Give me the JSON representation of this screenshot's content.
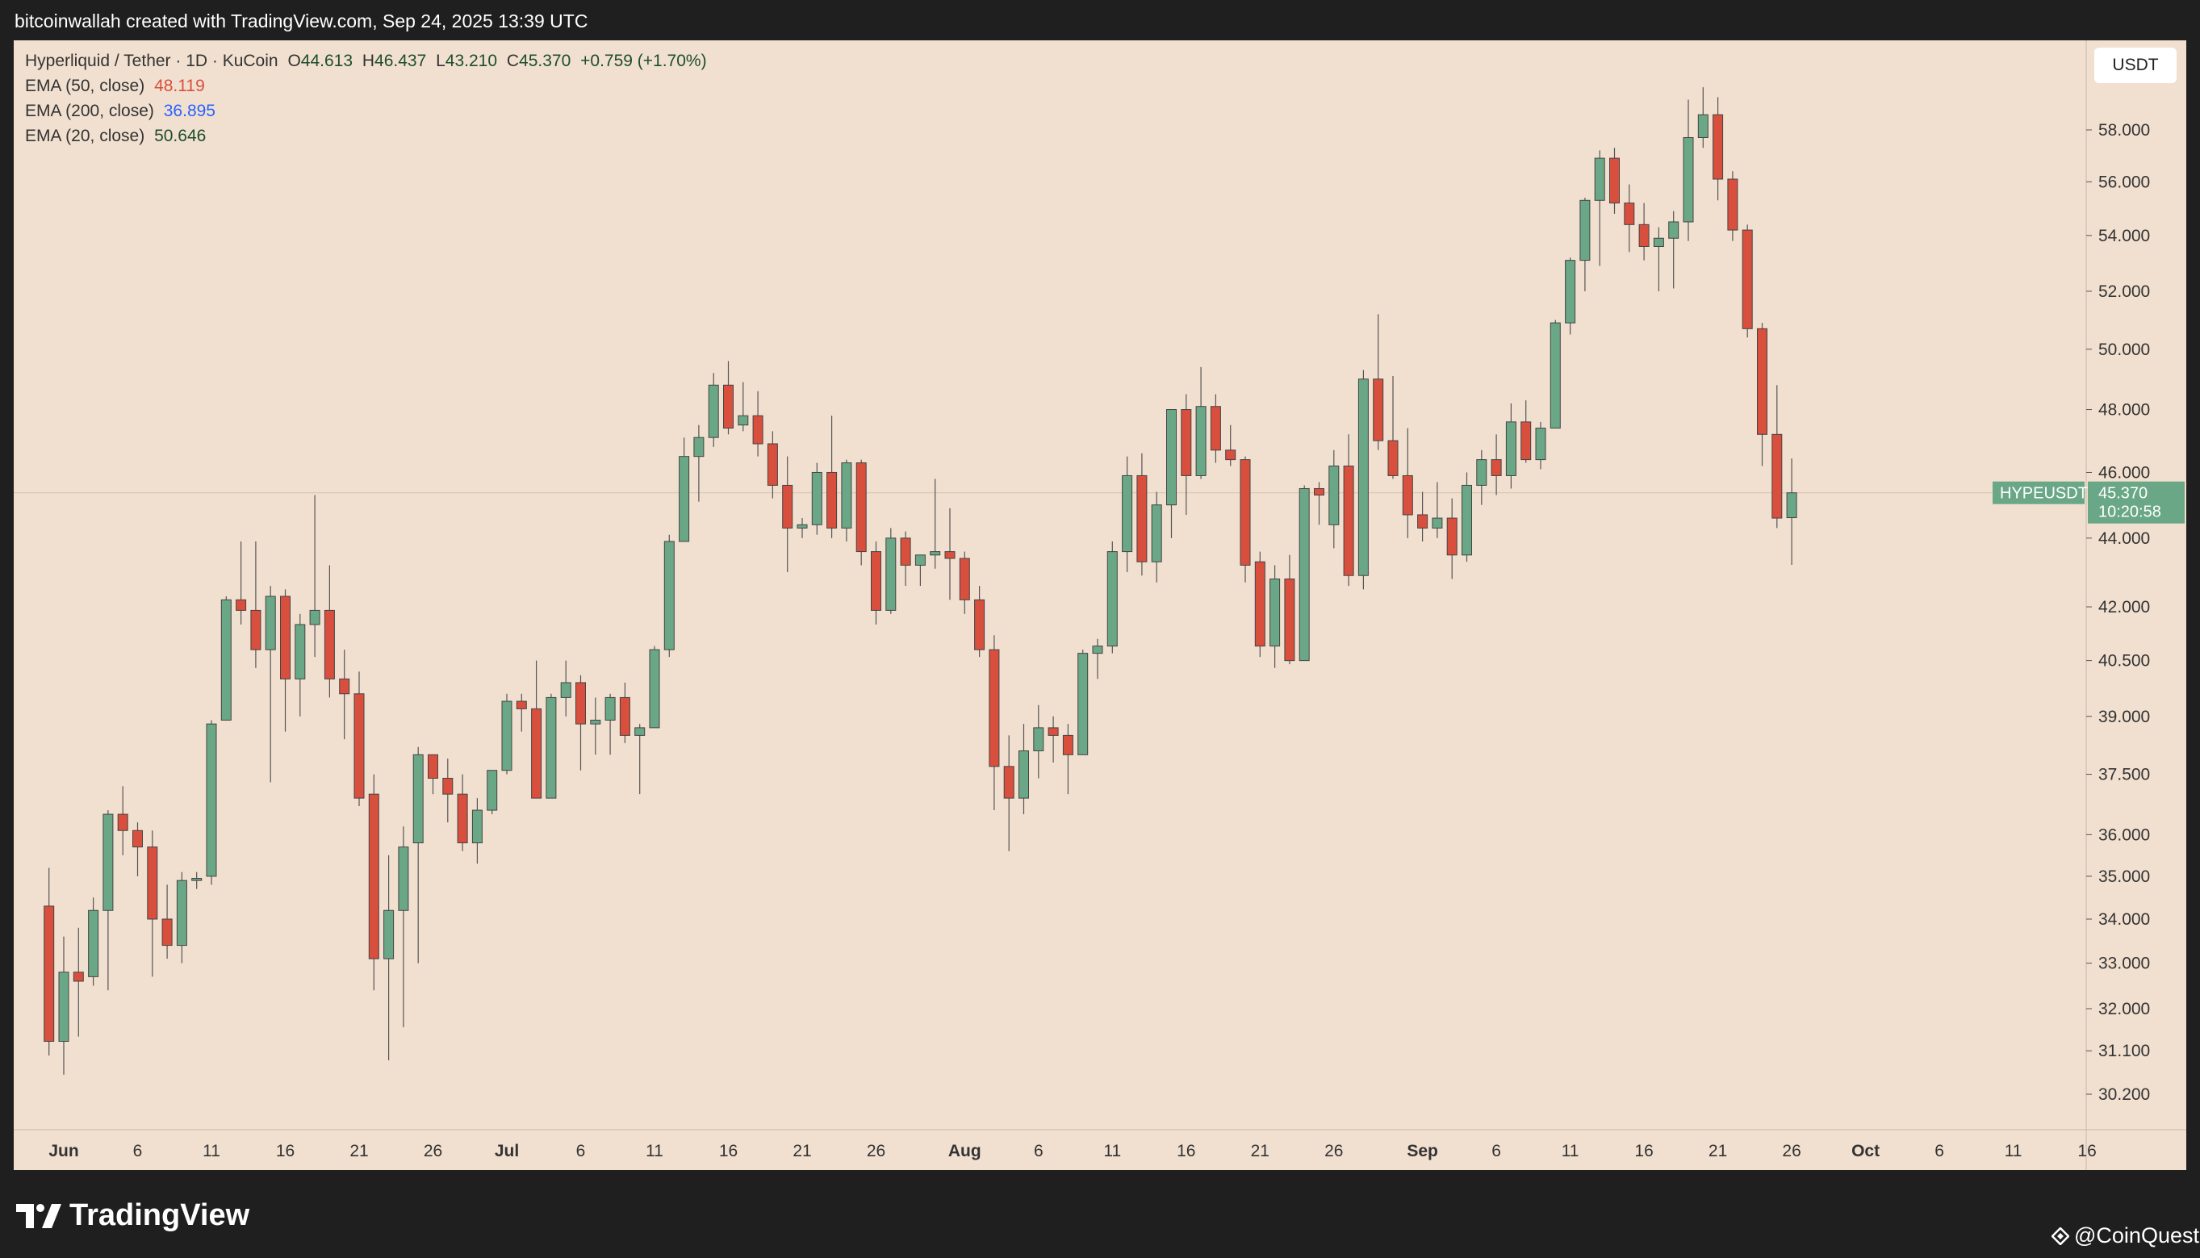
{
  "header": {
    "credit": "bitcoinwallah created with TradingView.com, Sep 24, 2025 13:39 UTC"
  },
  "legend": {
    "symbol_line": {
      "name": "Hyperliquid / Tether · 1D · KuCoin",
      "open_label": "O",
      "open": "44.613",
      "high_label": "H",
      "high": "46.437",
      "low_label": "L",
      "low": "43.210",
      "close_label": "C",
      "close": "45.370",
      "change": "+0.759 (+1.70%)"
    },
    "ema": [
      {
        "label": "EMA (50, close)",
        "value": "48.119",
        "color": "#d94f3d"
      },
      {
        "label": "EMA (200, close)",
        "value": "36.895",
        "color": "#2962ff"
      },
      {
        "label": "EMA (20, close)",
        "value": "50.646",
        "color": "#1e4d2b"
      }
    ]
  },
  "currency_button": "USDT",
  "price_tag": {
    "symbol": "HYPEUSDT",
    "price": "45.370",
    "countdown": "10:20:58",
    "color": "#6aa786"
  },
  "brand": {
    "name": "TradingView"
  },
  "watermark": {
    "text": "@CoinQuest"
  },
  "chart_data": {
    "type": "candlestick",
    "symbol": "HYPEUSDT",
    "scale": "log",
    "y_ticks": [
      58.0,
      56.0,
      54.0,
      52.0,
      50.0,
      48.0,
      46.0,
      44.0,
      42.0,
      40.5,
      39.0,
      37.5,
      36.0,
      35.0,
      34.0,
      33.0,
      32.0,
      31.1,
      30.2
    ],
    "y_tick_labels": [
      "58.000",
      "56.000",
      "54.000",
      "52.000",
      "50.000",
      "48.000",
      "46.000",
      "44.000",
      "42.000",
      "40.500",
      "39.000",
      "37.500",
      "36.000",
      "35.000",
      "34.000",
      "33.000",
      "32.000",
      "31.100",
      "30.200"
    ],
    "x_tick_labels": [
      "Jun",
      "6",
      "11",
      "16",
      "21",
      "26",
      "Jul",
      "6",
      "11",
      "16",
      "21",
      "26",
      "Aug",
      "6",
      "11",
      "16",
      "21",
      "26",
      "Sep",
      "6",
      "11",
      "16",
      "21",
      "26",
      "Oct",
      "6",
      "11",
      "16"
    ],
    "x_tick_dates": [
      "2025-06-01",
      "2025-06-06",
      "2025-06-11",
      "2025-06-16",
      "2025-06-21",
      "2025-06-26",
      "2025-07-01",
      "2025-07-06",
      "2025-07-11",
      "2025-07-16",
      "2025-07-21",
      "2025-07-26",
      "2025-08-01",
      "2025-08-06",
      "2025-08-11",
      "2025-08-16",
      "2025-08-21",
      "2025-08-26",
      "2025-09-01",
      "2025-09-06",
      "2025-09-11",
      "2025-09-16",
      "2025-09-21",
      "2025-09-26",
      "2025-10-01",
      "2025-10-06",
      "2025-10-11",
      "2025-10-16"
    ],
    "last_price": 45.37,
    "up_color": "#6aa786",
    "down_color": "#d94f3d",
    "candles": [
      {
        "date": "2025-05-31",
        "o": 34.3,
        "h": 35.2,
        "l": 31.0,
        "c": 31.3
      },
      {
        "date": "2025-06-01",
        "o": 31.3,
        "h": 33.6,
        "l": 30.6,
        "c": 32.8
      },
      {
        "date": "2025-06-02",
        "o": 32.8,
        "h": 33.8,
        "l": 31.4,
        "c": 32.6
      },
      {
        "date": "2025-06-03",
        "o": 32.7,
        "h": 34.5,
        "l": 32.5,
        "c": 34.2
      },
      {
        "date": "2025-06-04",
        "o": 34.2,
        "h": 36.6,
        "l": 32.4,
        "c": 36.5
      },
      {
        "date": "2025-06-05",
        "o": 36.5,
        "h": 37.2,
        "l": 35.5,
        "c": 36.1
      },
      {
        "date": "2025-06-06",
        "o": 36.1,
        "h": 36.3,
        "l": 35.0,
        "c": 35.7
      },
      {
        "date": "2025-06-07",
        "o": 35.7,
        "h": 36.1,
        "l": 32.7,
        "c": 34.0
      },
      {
        "date": "2025-06-08",
        "o": 34.0,
        "h": 34.8,
        "l": 33.1,
        "c": 33.4
      },
      {
        "date": "2025-06-09",
        "o": 33.4,
        "h": 35.1,
        "l": 33.0,
        "c": 34.9
      },
      {
        "date": "2025-06-10",
        "o": 34.9,
        "h": 35.1,
        "l": 34.7,
        "c": 34.95
      },
      {
        "date": "2025-06-11",
        "o": 35.0,
        "h": 38.9,
        "l": 34.8,
        "c": 38.8
      },
      {
        "date": "2025-06-12",
        "o": 38.9,
        "h": 42.3,
        "l": 38.9,
        "c": 42.2
      },
      {
        "date": "2025-06-13",
        "o": 42.2,
        "h": 43.9,
        "l": 41.5,
        "c": 41.9
      },
      {
        "date": "2025-06-14",
        "o": 41.9,
        "h": 43.9,
        "l": 40.3,
        "c": 40.8
      },
      {
        "date": "2025-06-15",
        "o": 40.8,
        "h": 42.6,
        "l": 37.3,
        "c": 42.3
      },
      {
        "date": "2025-06-16",
        "o": 42.3,
        "h": 42.5,
        "l": 38.6,
        "c": 40.0
      },
      {
        "date": "2025-06-17",
        "o": 40.0,
        "h": 41.8,
        "l": 39.0,
        "c": 41.5
      },
      {
        "date": "2025-06-18",
        "o": 41.5,
        "h": 45.3,
        "l": 40.6,
        "c": 41.9
      },
      {
        "date": "2025-06-19",
        "o": 41.9,
        "h": 43.2,
        "l": 39.5,
        "c": 40.0
      },
      {
        "date": "2025-06-20",
        "o": 40.0,
        "h": 40.8,
        "l": 38.4,
        "c": 39.6
      },
      {
        "date": "2025-06-21",
        "o": 39.6,
        "h": 40.2,
        "l": 36.7,
        "c": 36.9
      },
      {
        "date": "2025-06-22",
        "o": 37.0,
        "h": 37.5,
        "l": 32.4,
        "c": 33.1
      },
      {
        "date": "2025-06-23",
        "o": 33.1,
        "h": 35.5,
        "l": 30.9,
        "c": 34.2
      },
      {
        "date": "2025-06-24",
        "o": 34.2,
        "h": 36.2,
        "l": 31.6,
        "c": 35.7
      },
      {
        "date": "2025-06-25",
        "o": 35.8,
        "h": 38.2,
        "l": 33.0,
        "c": 38.0
      },
      {
        "date": "2025-06-26",
        "o": 38.0,
        "h": 38.0,
        "l": 37.0,
        "c": 37.4
      },
      {
        "date": "2025-06-27",
        "o": 37.4,
        "h": 37.9,
        "l": 36.3,
        "c": 37.0
      },
      {
        "date": "2025-06-28",
        "o": 37.0,
        "h": 37.5,
        "l": 35.6,
        "c": 35.8
      },
      {
        "date": "2025-06-29",
        "o": 35.8,
        "h": 36.9,
        "l": 35.3,
        "c": 36.6
      },
      {
        "date": "2025-06-30",
        "o": 36.6,
        "h": 37.6,
        "l": 36.5,
        "c": 37.6
      },
      {
        "date": "2025-07-01",
        "o": 37.6,
        "h": 39.6,
        "l": 37.5,
        "c": 39.4
      },
      {
        "date": "2025-07-02",
        "o": 39.4,
        "h": 39.6,
        "l": 38.6,
        "c": 39.2
      },
      {
        "date": "2025-07-03",
        "o": 39.2,
        "h": 40.5,
        "l": 37.1,
        "c": 36.9
      },
      {
        "date": "2025-07-04",
        "o": 36.9,
        "h": 39.6,
        "l": 36.9,
        "c": 39.5
      },
      {
        "date": "2025-07-05",
        "o": 39.5,
        "h": 40.5,
        "l": 39.0,
        "c": 39.9
      },
      {
        "date": "2025-07-06",
        "o": 39.9,
        "h": 40.1,
        "l": 37.6,
        "c": 38.8
      },
      {
        "date": "2025-07-07",
        "o": 38.8,
        "h": 39.5,
        "l": 38.0,
        "c": 38.9
      },
      {
        "date": "2025-07-08",
        "o": 38.9,
        "h": 39.6,
        "l": 38.0,
        "c": 39.5
      },
      {
        "date": "2025-07-09",
        "o": 39.5,
        "h": 39.9,
        "l": 38.3,
        "c": 38.5
      },
      {
        "date": "2025-07-10",
        "o": 38.5,
        "h": 38.8,
        "l": 37.0,
        "c": 38.7
      },
      {
        "date": "2025-07-11",
        "o": 38.7,
        "h": 40.9,
        "l": 38.7,
        "c": 40.8
      },
      {
        "date": "2025-07-12",
        "o": 40.8,
        "h": 44.1,
        "l": 40.6,
        "c": 43.9
      },
      {
        "date": "2025-07-13",
        "o": 43.9,
        "h": 47.1,
        "l": 43.9,
        "c": 46.5
      },
      {
        "date": "2025-07-14",
        "o": 46.5,
        "h": 47.5,
        "l": 45.1,
        "c": 47.1
      },
      {
        "date": "2025-07-15",
        "o": 47.1,
        "h": 49.2,
        "l": 46.8,
        "c": 48.8
      },
      {
        "date": "2025-07-16",
        "o": 48.8,
        "h": 49.6,
        "l": 47.2,
        "c": 47.4
      },
      {
        "date": "2025-07-17",
        "o": 47.5,
        "h": 48.9,
        "l": 47.3,
        "c": 47.8
      },
      {
        "date": "2025-07-18",
        "o": 47.8,
        "h": 48.6,
        "l": 46.5,
        "c": 46.9
      },
      {
        "date": "2025-07-19",
        "o": 46.9,
        "h": 47.3,
        "l": 45.2,
        "c": 45.6
      },
      {
        "date": "2025-07-20",
        "o": 45.6,
        "h": 46.5,
        "l": 43.0,
        "c": 44.3
      },
      {
        "date": "2025-07-21",
        "o": 44.3,
        "h": 44.6,
        "l": 44.0,
        "c": 44.4
      },
      {
        "date": "2025-07-22",
        "o": 44.4,
        "h": 46.3,
        "l": 44.1,
        "c": 46.0
      },
      {
        "date": "2025-07-23",
        "o": 46.0,
        "h": 47.8,
        "l": 44.0,
        "c": 44.3
      },
      {
        "date": "2025-07-24",
        "o": 44.3,
        "h": 46.4,
        "l": 43.9,
        "c": 46.3
      },
      {
        "date": "2025-07-25",
        "o": 46.3,
        "h": 46.4,
        "l": 43.2,
        "c": 43.6
      },
      {
        "date": "2025-07-26",
        "o": 43.6,
        "h": 43.9,
        "l": 41.5,
        "c": 41.9
      },
      {
        "date": "2025-07-27",
        "o": 41.9,
        "h": 44.3,
        "l": 41.8,
        "c": 44.0
      },
      {
        "date": "2025-07-28",
        "o": 44.0,
        "h": 44.2,
        "l": 42.6,
        "c": 43.2
      },
      {
        "date": "2025-07-29",
        "o": 43.2,
        "h": 43.5,
        "l": 42.6,
        "c": 43.5
      },
      {
        "date": "2025-07-30",
        "o": 43.5,
        "h": 45.8,
        "l": 43.1,
        "c": 43.6
      },
      {
        "date": "2025-07-31",
        "o": 43.6,
        "h": 44.9,
        "l": 42.2,
        "c": 43.4
      },
      {
        "date": "2025-08-01",
        "o": 43.4,
        "h": 43.6,
        "l": 41.8,
        "c": 42.2
      },
      {
        "date": "2025-08-02",
        "o": 42.2,
        "h": 42.6,
        "l": 40.6,
        "c": 40.8
      },
      {
        "date": "2025-08-03",
        "o": 40.8,
        "h": 41.2,
        "l": 36.6,
        "c": 37.7
      },
      {
        "date": "2025-08-04",
        "o": 37.7,
        "h": 38.5,
        "l": 35.6,
        "c": 36.9
      },
      {
        "date": "2025-08-05",
        "o": 36.9,
        "h": 38.8,
        "l": 36.5,
        "c": 38.1
      },
      {
        "date": "2025-08-06",
        "o": 38.1,
        "h": 39.3,
        "l": 37.4,
        "c": 38.7
      },
      {
        "date": "2025-08-07",
        "o": 38.7,
        "h": 39.0,
        "l": 37.8,
        "c": 38.5
      },
      {
        "date": "2025-08-08",
        "o": 38.5,
        "h": 38.8,
        "l": 37.0,
        "c": 38.0
      },
      {
        "date": "2025-08-09",
        "o": 38.0,
        "h": 40.8,
        "l": 38.0,
        "c": 40.7
      },
      {
        "date": "2025-08-10",
        "o": 40.7,
        "h": 41.1,
        "l": 40.0,
        "c": 40.9
      },
      {
        "date": "2025-08-11",
        "o": 40.9,
        "h": 43.9,
        "l": 40.7,
        "c": 43.6
      },
      {
        "date": "2025-08-12",
        "o": 43.6,
        "h": 46.5,
        "l": 43.0,
        "c": 45.9
      },
      {
        "date": "2025-08-13",
        "o": 45.9,
        "h": 46.6,
        "l": 42.9,
        "c": 43.3
      },
      {
        "date": "2025-08-14",
        "o": 43.3,
        "h": 45.4,
        "l": 42.7,
        "c": 45.0
      },
      {
        "date": "2025-08-15",
        "o": 45.0,
        "h": 48.0,
        "l": 44.0,
        "c": 48.0
      },
      {
        "date": "2025-08-16",
        "o": 48.0,
        "h": 48.5,
        "l": 44.7,
        "c": 45.9
      },
      {
        "date": "2025-08-17",
        "o": 45.9,
        "h": 49.4,
        "l": 45.8,
        "c": 48.1
      },
      {
        "date": "2025-08-18",
        "o": 48.1,
        "h": 48.5,
        "l": 46.3,
        "c": 46.7
      },
      {
        "date": "2025-08-19",
        "o": 46.7,
        "h": 47.5,
        "l": 46.2,
        "c": 46.4
      },
      {
        "date": "2025-08-20",
        "o": 46.4,
        "h": 46.5,
        "l": 42.7,
        "c": 43.2
      },
      {
        "date": "2025-08-21",
        "o": 43.3,
        "h": 43.6,
        "l": 40.6,
        "c": 40.9
      },
      {
        "date": "2025-08-22",
        "o": 40.9,
        "h": 43.2,
        "l": 40.3,
        "c": 42.8
      },
      {
        "date": "2025-08-23",
        "o": 42.8,
        "h": 43.5,
        "l": 40.4,
        "c": 40.5
      },
      {
        "date": "2025-08-24",
        "o": 40.5,
        "h": 45.6,
        "l": 40.5,
        "c": 45.5
      },
      {
        "date": "2025-08-25",
        "o": 45.5,
        "h": 45.7,
        "l": 44.4,
        "c": 45.3
      },
      {
        "date": "2025-08-26",
        "o": 44.4,
        "h": 46.7,
        "l": 43.7,
        "c": 46.2
      },
      {
        "date": "2025-08-27",
        "o": 46.2,
        "h": 47.2,
        "l": 42.6,
        "c": 42.9
      },
      {
        "date": "2025-08-28",
        "o": 42.9,
        "h": 49.3,
        "l": 42.5,
        "c": 49.0
      },
      {
        "date": "2025-08-29",
        "o": 49.0,
        "h": 51.2,
        "l": 46.7,
        "c": 47.0
      },
      {
        "date": "2025-08-30",
        "o": 47.0,
        "h": 49.1,
        "l": 45.8,
        "c": 45.9
      },
      {
        "date": "2025-08-31",
        "o": 45.9,
        "h": 47.4,
        "l": 44.0,
        "c": 44.7
      },
      {
        "date": "2025-09-01",
        "o": 44.7,
        "h": 45.4,
        "l": 43.9,
        "c": 44.3
      },
      {
        "date": "2025-09-02",
        "o": 44.3,
        "h": 45.7,
        "l": 44.0,
        "c": 44.6
      },
      {
        "date": "2025-09-03",
        "o": 44.6,
        "h": 45.2,
        "l": 42.8,
        "c": 43.5
      },
      {
        "date": "2025-09-04",
        "o": 43.5,
        "h": 46.0,
        "l": 43.3,
        "c": 45.6
      },
      {
        "date": "2025-09-05",
        "o": 45.6,
        "h": 46.7,
        "l": 45.0,
        "c": 46.4
      },
      {
        "date": "2025-09-06",
        "o": 46.4,
        "h": 47.2,
        "l": 45.3,
        "c": 45.9
      },
      {
        "date": "2025-09-07",
        "o": 45.9,
        "h": 48.2,
        "l": 45.5,
        "c": 47.6
      },
      {
        "date": "2025-09-08",
        "o": 47.6,
        "h": 48.3,
        "l": 46.3,
        "c": 46.4
      },
      {
        "date": "2025-09-09",
        "o": 46.4,
        "h": 47.6,
        "l": 46.1,
        "c": 47.4
      },
      {
        "date": "2025-09-10",
        "o": 47.4,
        "h": 51.0,
        "l": 47.4,
        "c": 50.9
      },
      {
        "date": "2025-09-11",
        "o": 50.9,
        "h": 53.2,
        "l": 50.5,
        "c": 53.1
      },
      {
        "date": "2025-09-12",
        "o": 53.1,
        "h": 55.4,
        "l": 52.0,
        "c": 55.3
      },
      {
        "date": "2025-09-13",
        "o": 55.3,
        "h": 57.2,
        "l": 52.9,
        "c": 56.9
      },
      {
        "date": "2025-09-14",
        "o": 56.9,
        "h": 57.3,
        "l": 54.8,
        "c": 55.2
      },
      {
        "date": "2025-09-15",
        "o": 55.2,
        "h": 55.9,
        "l": 53.4,
        "c": 54.4
      },
      {
        "date": "2025-09-16",
        "o": 54.4,
        "h": 55.2,
        "l": 53.1,
        "c": 53.6
      },
      {
        "date": "2025-09-17",
        "o": 53.6,
        "h": 54.3,
        "l": 52.0,
        "c": 53.9
      },
      {
        "date": "2025-09-18",
        "o": 53.9,
        "h": 54.9,
        "l": 52.1,
        "c": 54.5
      },
      {
        "date": "2025-09-19",
        "o": 54.5,
        "h": 59.2,
        "l": 53.8,
        "c": 57.7
      },
      {
        "date": "2025-09-20",
        "o": 57.7,
        "h": 59.7,
        "l": 57.3,
        "c": 58.6
      },
      {
        "date": "2025-09-21",
        "o": 58.6,
        "h": 59.3,
        "l": 55.3,
        "c": 56.1
      },
      {
        "date": "2025-09-22",
        "o": 56.1,
        "h": 56.4,
        "l": 53.8,
        "c": 54.2
      },
      {
        "date": "2025-09-23",
        "o": 54.2,
        "h": 54.4,
        "l": 50.4,
        "c": 50.7
      },
      {
        "date": "2025-09-24",
        "o": 50.7,
        "h": 50.9,
        "l": 46.2,
        "c": 47.2
      },
      {
        "date": "2025-09-25",
        "o": 47.2,
        "h": 48.8,
        "l": 44.3,
        "c": 44.6
      },
      {
        "date": "2025-09-26",
        "o": 44.613,
        "h": 46.437,
        "l": 43.21,
        "c": 45.37
      }
    ]
  }
}
